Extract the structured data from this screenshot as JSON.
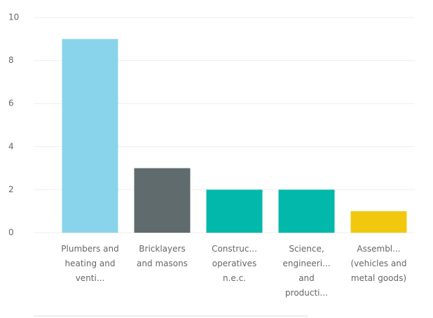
{
  "chart_data": {
    "type": "bar",
    "categories": [
      "Plumbers and heating and venti...",
      "Bricklayers and masons",
      "Construc... operatives n.e.c.",
      "Science, engineeri... and producti...",
      "Assembl... (vehicles and metal goods)"
    ],
    "values": [
      9,
      3,
      2,
      2,
      1
    ],
    "colors": [
      "#8ad4eb",
      "#5f6b6d",
      "#01b8aa",
      "#01b8aa",
      "#f2c80f"
    ],
    "ylim": [
      0,
      10
    ],
    "yticks": [
      0,
      2,
      4,
      6,
      8,
      10
    ],
    "grid": true
  }
}
